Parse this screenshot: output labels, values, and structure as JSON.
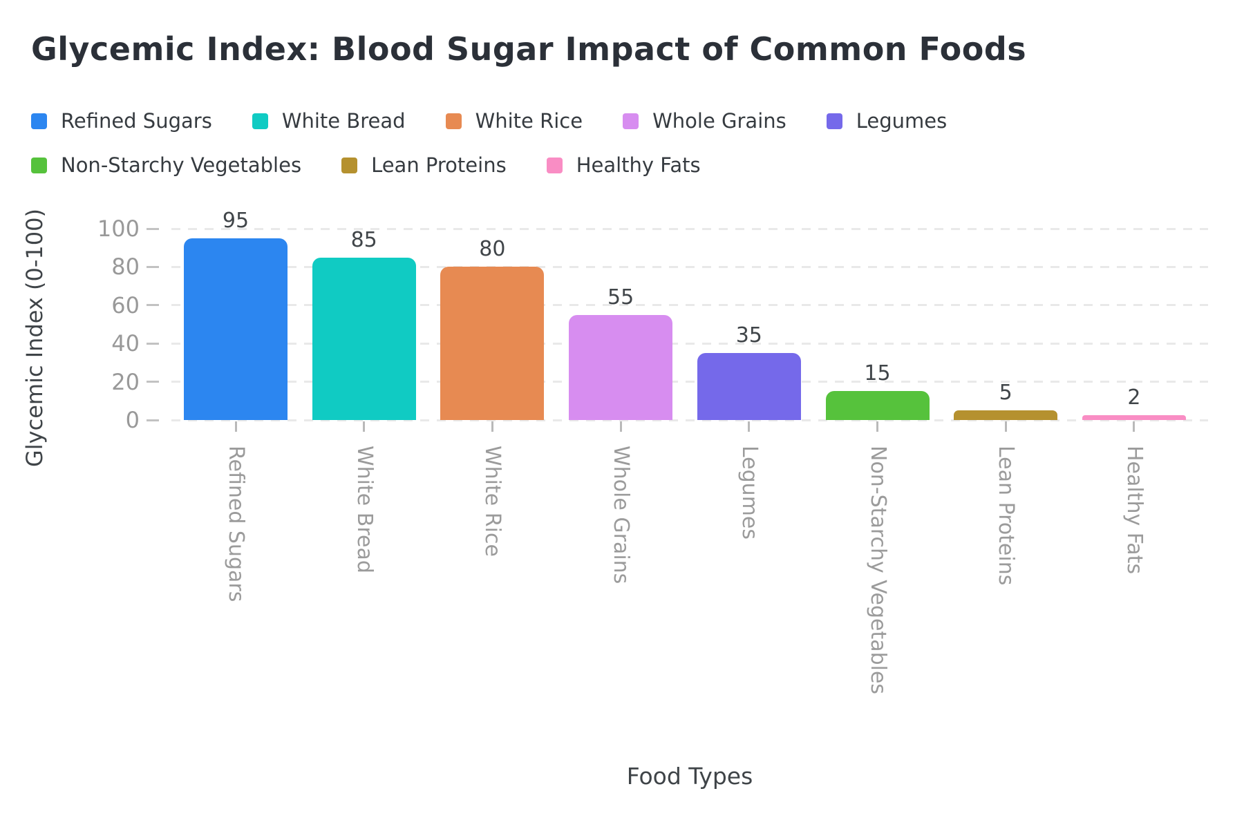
{
  "title": "Glycemic Index: Blood Sugar Impact of Common Foods",
  "axes": {
    "xlabel": "Food Types",
    "ylabel": "Glycemic Index (0-100)"
  },
  "chart_data": {
    "type": "bar",
    "title": "Glycemic Index: Blood Sugar Impact of Common Foods",
    "categories": [
      "Refined Sugars",
      "White Bread",
      "White Rice",
      "Whole Grains",
      "Legumes",
      "Non-Starchy Vegetables",
      "Lean Proteins",
      "Healthy Fats"
    ],
    "values": [
      95,
      85,
      80,
      55,
      35,
      15,
      5,
      2
    ],
    "colors": [
      "#2c86f0",
      "#10cbc3",
      "#e78a52",
      "#d78df0",
      "#7569ea",
      "#56c23c",
      "#b5912f",
      "#f98dc4"
    ],
    "value_labels": [
      "95",
      "85",
      "80",
      "55",
      "35",
      "15",
      "5",
      "2"
    ],
    "xlabel": "Food Types",
    "ylabel": "Glycemic Index (0-100)",
    "yticks": [
      0,
      20,
      40,
      60,
      80,
      100
    ],
    "ylim": [
      0,
      100
    ],
    "grid": "horizontal-dashed",
    "legend_position": "top",
    "legend_entries": [
      "Refined Sugars",
      "White Bread",
      "White Rice",
      "Whole Grains",
      "Legumes",
      "Non-Starchy Vegetables",
      "Lean Proteins",
      "Healthy Fats"
    ],
    "background": "#ffffff",
    "tick_label_color": "#999999",
    "text_color": "#404549"
  }
}
